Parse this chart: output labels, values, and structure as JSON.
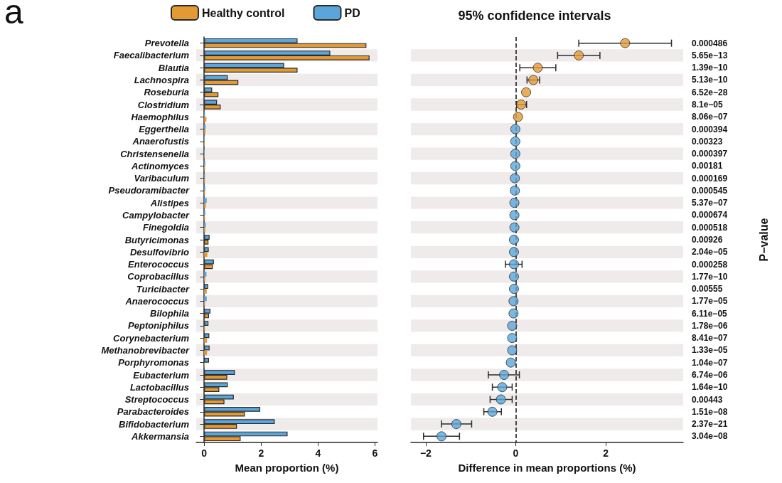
{
  "chart_data": [
    {
      "type": "bar",
      "orientation": "horizontal",
      "xlabel": "Mean proportion (%)",
      "annotations": [
        "a"
      ],
      "legend": "top",
      "categories": [
        "Prevotella",
        "Faecalibacterium",
        "Blautia",
        "Lachnospira",
        "Roseburia",
        "Clostridium",
        "Haemophilus",
        "Eggerthella",
        "Anaerofustis",
        "Christensenella",
        "Actinomyces",
        "Varibaculum",
        "Pseudoramibacter",
        "Alistipes",
        "Campylobacter",
        "Finegoldia",
        "Butyricimonas",
        "Desulfovibrio",
        "Enterococcus",
        "Coprobacillus",
        "Turicibacter",
        "Anaerococcus",
        "Bilophila",
        "Peptoniphilus",
        "Corynebacterium",
        "Methanobrevibacter",
        "Porphyromonas",
        "Eubacterium",
        "Lactobacillus",
        "Streptococcus",
        "Parabacteroides",
        "Bifidobacterium",
        "Akkermansia"
      ],
      "series": [
        {
          "name": "PD",
          "color": "#5aa6db",
          "values": [
            3.28,
            4.43,
            2.81,
            0.83,
            0.28,
            0.45,
            0.03,
            0.05,
            0.02,
            0.02,
            0.04,
            0.03,
            0.04,
            0.09,
            0.04,
            0.06,
            0.19,
            0.16,
            0.34,
            0.08,
            0.14,
            0.09,
            0.22,
            0.15,
            0.18,
            0.19,
            0.17,
            1.08,
            0.83,
            1.04,
            1.97,
            2.48,
            2.93
          ]
        },
        {
          "name": "Healthy control",
          "color": "#e39a35",
          "values": [
            5.7,
            5.81,
            3.28,
            1.2,
            0.5,
            0.58,
            0.08,
            0.05,
            0.02,
            0.02,
            0.03,
            0.03,
            0.03,
            0.06,
            0.03,
            0.04,
            0.15,
            0.11,
            0.3,
            0.04,
            0.09,
            0.03,
            0.17,
            0.03,
            0.1,
            0.1,
            0.02,
            0.81,
            0.53,
            0.71,
            1.43,
            1.15,
            1.28
          ]
        }
      ],
      "xlim": [
        -0.28,
        6.09
      ],
      "xticks": [
        0,
        2,
        4,
        6
      ]
    },
    {
      "type": "scatter",
      "orientation": "horizontal",
      "title": "95% confidence intervals",
      "xlabel": "Difference in mean proportions (%)",
      "ylabel": "P−value",
      "marker": "circle",
      "categories": [
        "0.000486",
        "5.65e−13",
        "1.39e−10",
        "5.13e−10",
        "6.52e−28",
        "8.1e−05",
        "8.06e−07",
        "0.000394",
        "0.00323",
        "0.000397",
        "0.00181",
        "0.000169",
        "0.000545",
        "5.37e−07",
        "0.000674",
        "0.000518",
        "0.00926",
        "2.04e−05",
        "0.000258",
        "1.77e−10",
        "0.00555",
        "1.77e−05",
        "6.11e−05",
        "1.78e−06",
        "8.41e−07",
        "1.33e−05",
        "1.04e−07",
        "6.74e−06",
        "1.64e−10",
        "0.00443",
        "1.51e−08",
        "2.37e−21",
        "3.04e−08"
      ],
      "values": [
        2.43,
        1.4,
        0.49,
        0.39,
        0.23,
        0.12,
        0.05,
        -0.01,
        -0.01,
        -0.01,
        -0.01,
        -0.02,
        -0.02,
        -0.03,
        -0.03,
        -0.03,
        -0.04,
        -0.04,
        -0.04,
        -0.04,
        -0.04,
        -0.05,
        -0.05,
        -0.08,
        -0.08,
        -0.08,
        -0.11,
        -0.26,
        -0.3,
        -0.33,
        -0.52,
        -1.32,
        -1.65
      ],
      "errors": [
        [
          1.4,
          3.46
        ],
        [
          0.93,
          1.87
        ],
        [
          0.09,
          0.89
        ],
        [
          0.25,
          0.53
        ],
        null,
        [
          0.02,
          0.24
        ],
        null,
        null,
        null,
        null,
        null,
        null,
        null,
        null,
        null,
        null,
        null,
        null,
        [
          -0.23,
          0.14
        ],
        null,
        null,
        null,
        null,
        null,
        null,
        null,
        null,
        [
          -0.61,
          0.08
        ],
        [
          -0.52,
          -0.08
        ],
        [
          -0.57,
          -0.08
        ],
        [
          -0.71,
          -0.32
        ],
        [
          -1.65,
          -0.98
        ],
        [
          -2.05,
          -1.25
        ]
      ],
      "colors": [
        "#e39a35",
        "#e39a35",
        "#e39a35",
        "#e39a35",
        "#e39a35",
        "#e39a35",
        "#e39a35",
        "#5aa6db",
        "#5aa6db",
        "#5aa6db",
        "#5aa6db",
        "#5aa6db",
        "#5aa6db",
        "#5aa6db",
        "#5aa6db",
        "#5aa6db",
        "#5aa6db",
        "#5aa6db",
        "#5aa6db",
        "#5aa6db",
        "#5aa6db",
        "#5aa6db",
        "#5aa6db",
        "#5aa6db",
        "#5aa6db",
        "#5aa6db",
        "#5aa6db",
        "#5aa6db",
        "#5aa6db",
        "#5aa6db",
        "#5aa6db",
        "#5aa6db",
        "#5aa6db"
      ],
      "ref_lines": [
        {
          "axis": "x",
          "value": 0,
          "line_style": "dashed"
        }
      ],
      "xlim": [
        -2.33,
        3.72
      ],
      "xticks": [
        -2,
        0,
        2
      ]
    }
  ]
}
